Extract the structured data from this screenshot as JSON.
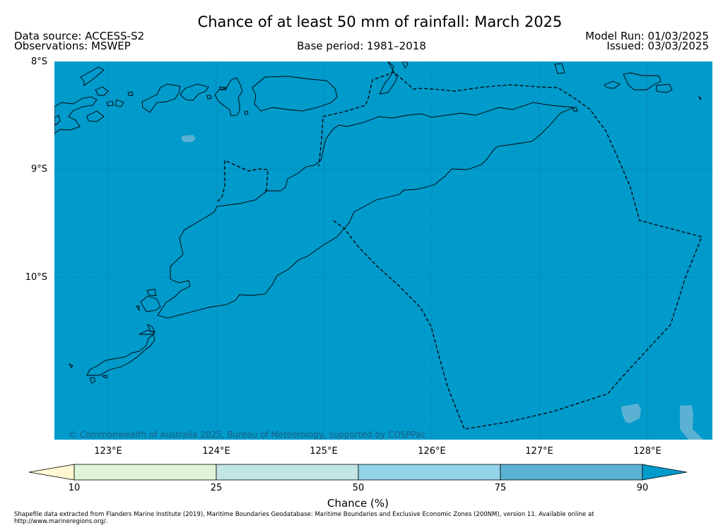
{
  "header": {
    "title": "Chance of at least 50 mm of rainfall: March 2025",
    "data_source": "Data source: ACCESS-S2",
    "observations": "Observations: MSWEP",
    "base_period": "Base period: 1981–2018",
    "model_run": "Model Run: 01/03/2025",
    "issued": "Issued: 03/03/2025"
  },
  "map": {
    "background_color": "#009acb",
    "lat_labels": [
      "8°S",
      "9°S",
      "10°S"
    ],
    "lon_labels": [
      "123°E",
      "124°E",
      "125°E",
      "126°E",
      "127°E",
      "128°E"
    ],
    "copyright": "© Commonwealth of Australia 2025, Bureau of Meteorology, supported by COSPPac"
  },
  "colorbar": {
    "label": "Chance (%)",
    "ticks": [
      "10",
      "25",
      "50",
      "75",
      "90"
    ],
    "colors": [
      "#fff8d2",
      "#e0f5d8",
      "#c2e6e4",
      "#93d3ea",
      "#5ab1d3",
      "#009acb"
    ]
  },
  "footer": {
    "text": "Shapefile data extracted from Flanders Marine Institute (2019), Maritime Boundaries Geodatabase: Maritime Boundaries and Exclusive Economic Zones (200NM), version 11. Available online at http://www.marineregions.org/."
  }
}
